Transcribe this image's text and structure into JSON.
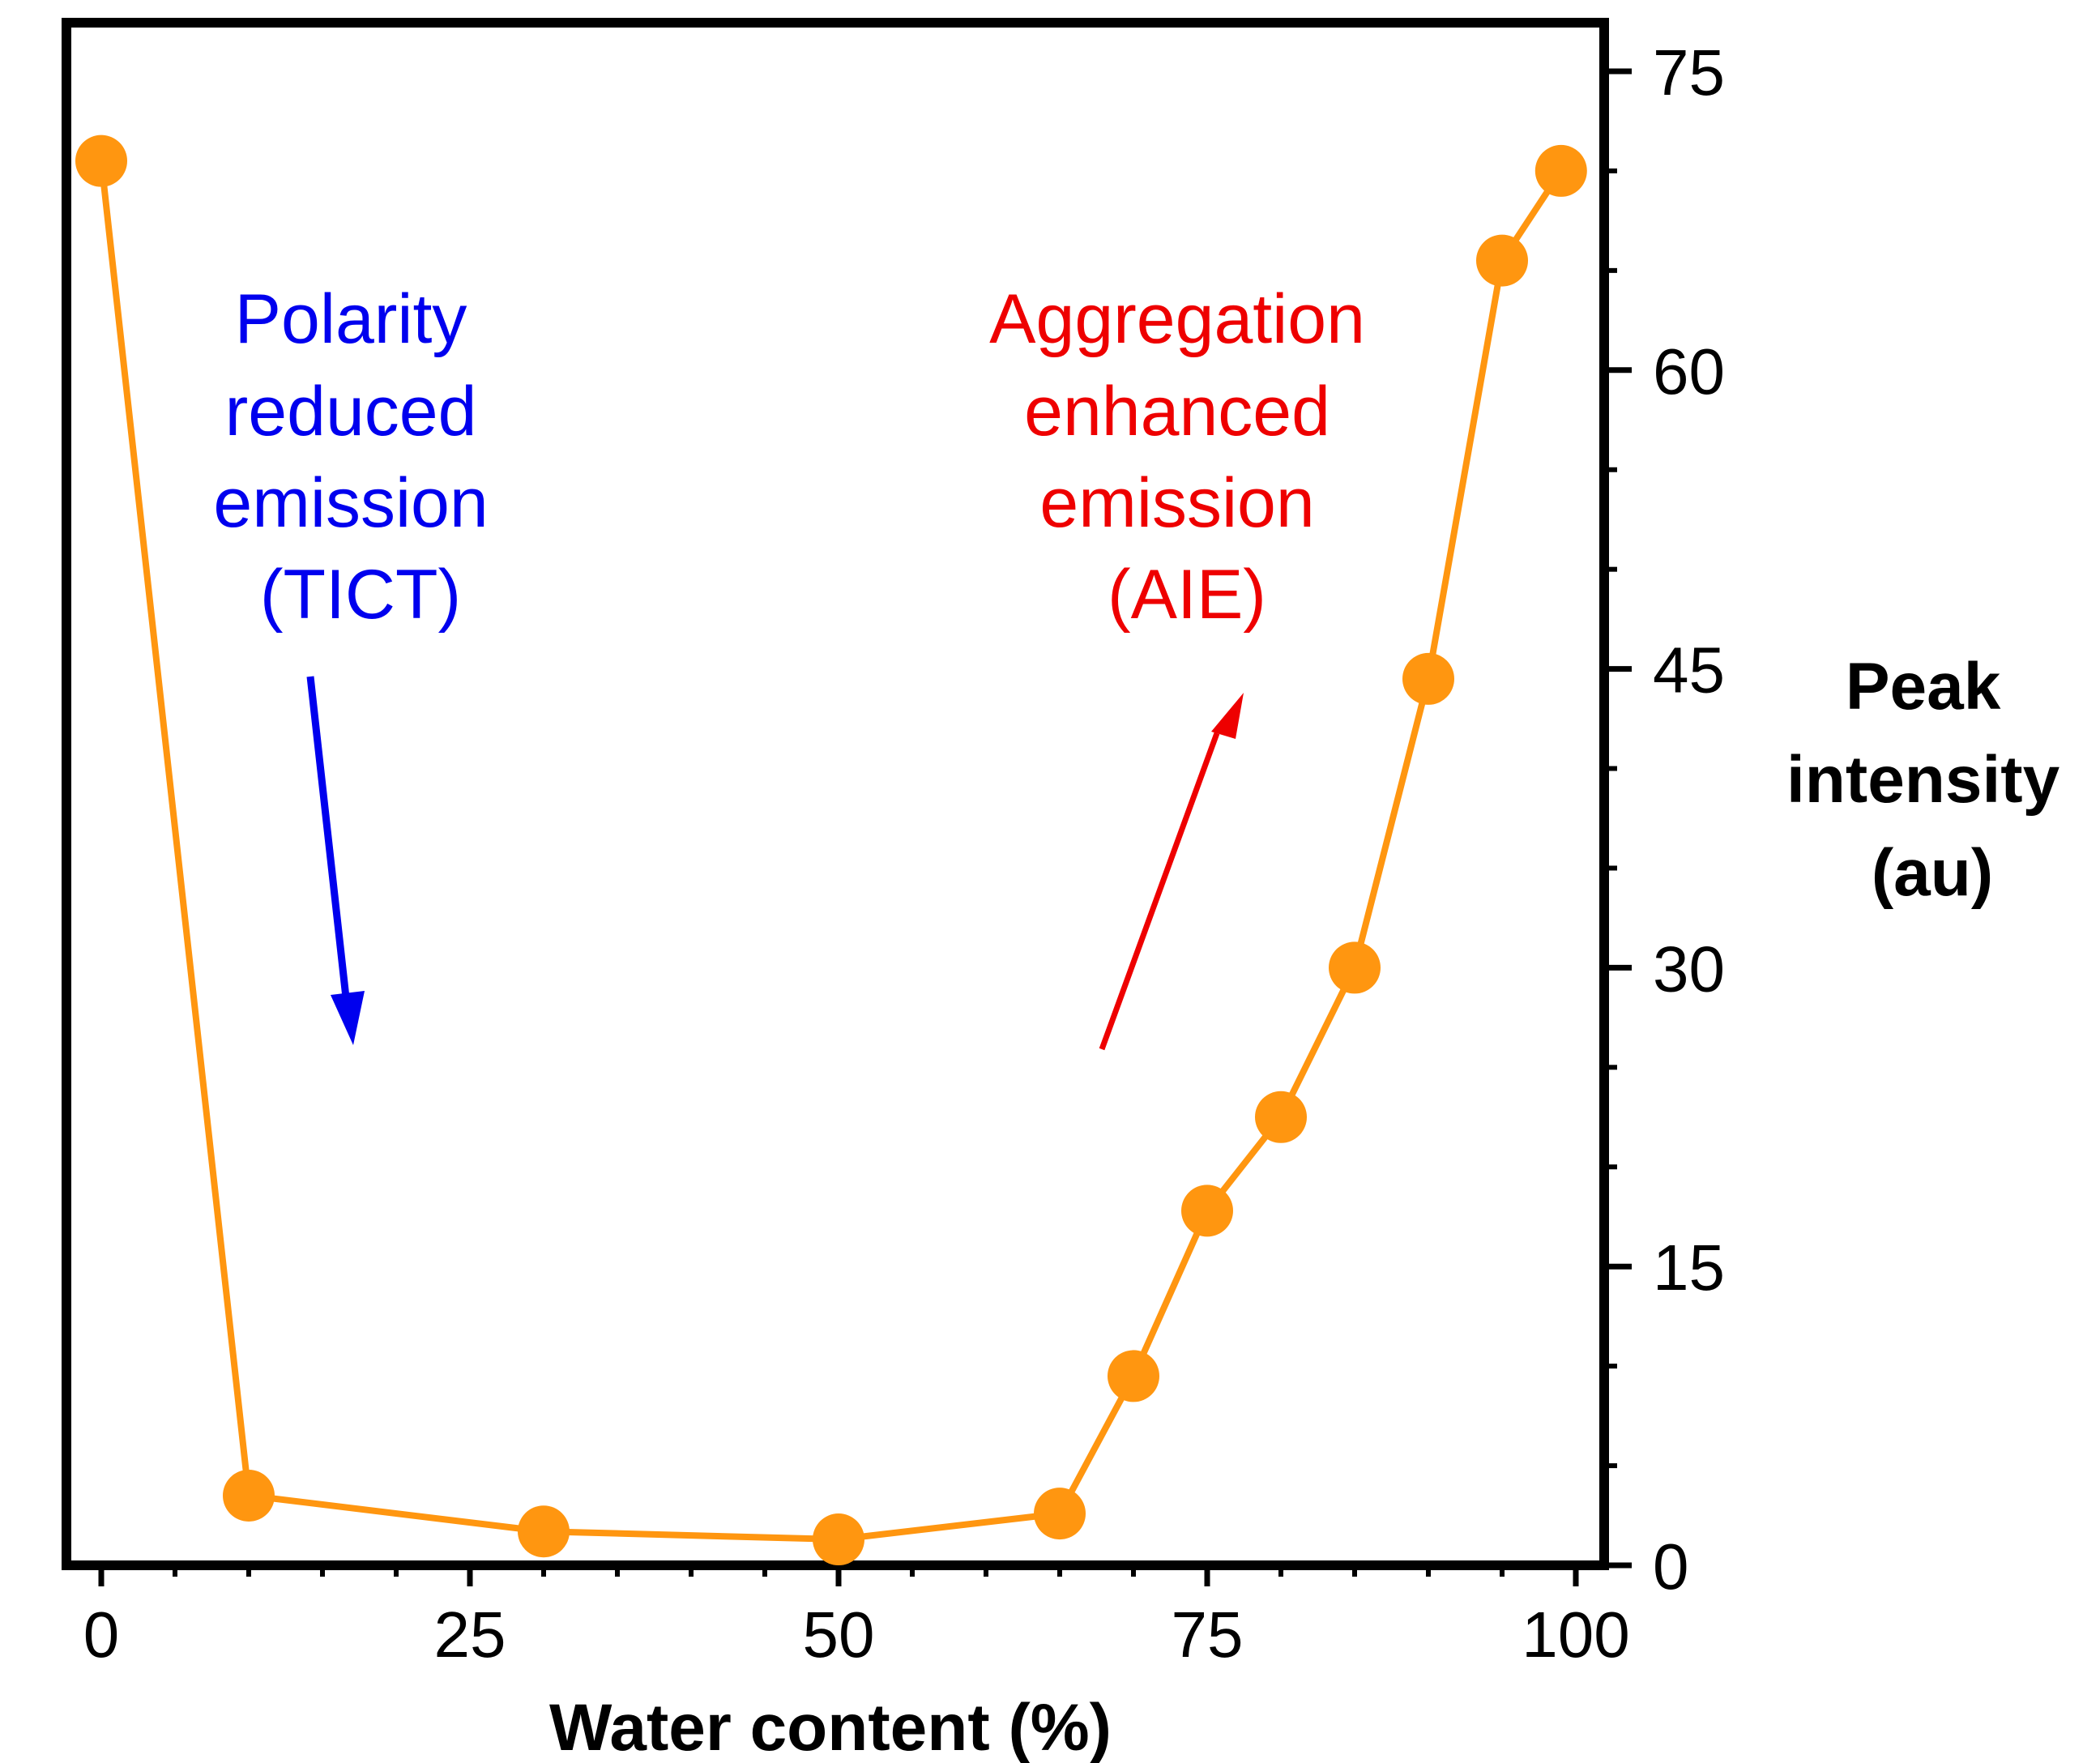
{
  "chart_data": {
    "type": "line",
    "xlabel": "Water content (%)",
    "ylabel_lines": [
      "Peak",
      "intensity",
      "(au)"
    ],
    "xlim": [
      0,
      100
    ],
    "ylim": [
      0,
      75
    ],
    "x_ticks": [
      0,
      25,
      50,
      75,
      100
    ],
    "y_ticks": [
      0,
      15,
      30,
      45,
      60,
      75
    ],
    "y_axis_side": "right",
    "grid": false,
    "legend": "none",
    "series": [
      {
        "x": [
          0,
          10,
          30,
          50,
          65,
          70,
          75,
          80,
          85,
          90,
          95,
          99
        ],
        "y": [
          70.5,
          3.5,
          1.7,
          1.3,
          2.6,
          9.5,
          17.8,
          22.5,
          30,
          44.5,
          65.5,
          70
        ],
        "color": "#ff9610"
      }
    ],
    "annotations": [
      {
        "lines": [
          "Polarity",
          "reduced",
          "emission",
          "(TICT)"
        ],
        "color": "#0000ee",
        "arrow": "down"
      },
      {
        "lines": [
          "Aggregation",
          "enhanced",
          "emission",
          "(AIE)"
        ],
        "color": "#ee0000",
        "arrow": "up"
      }
    ]
  }
}
